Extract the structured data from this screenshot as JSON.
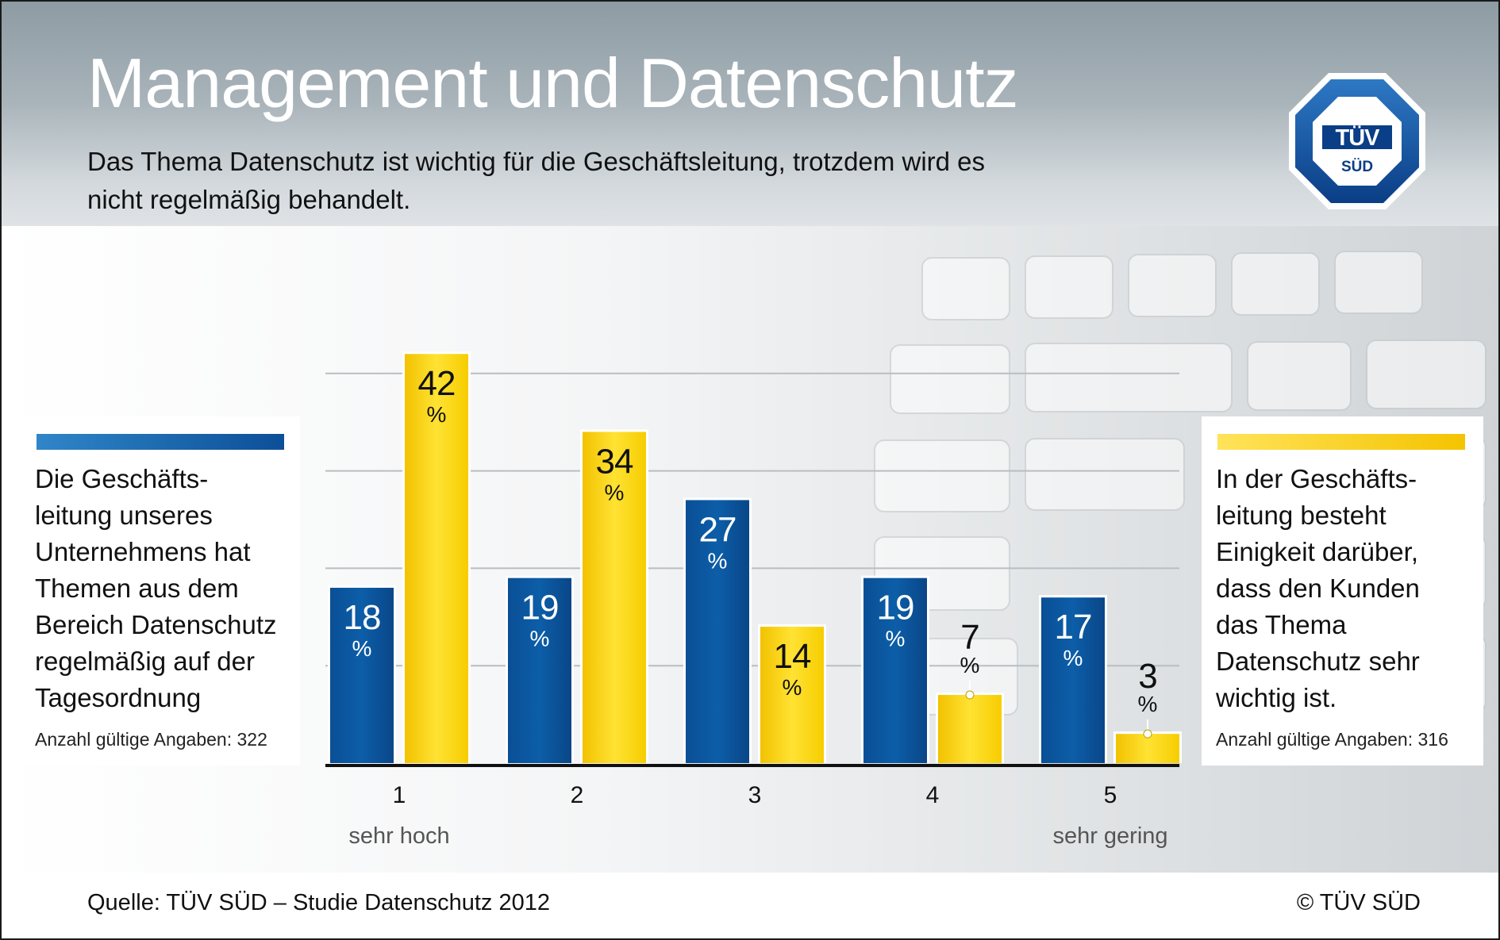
{
  "header": {
    "title": "Management und Datenschutz",
    "subtitle": "Das Thema Datenschutz ist wichtig für die Geschäftsleitung, trotzdem wird es nicht regelmäßig behandelt."
  },
  "logo": {
    "main": "TÜV",
    "sub": "SÜD",
    "icon": "tuev-sued-octagon-logo"
  },
  "legend": {
    "left": {
      "text": "Die Geschäfts-\nleitung  unseres\nUnternehmens hat\nThemen aus dem\nBereich Datenschutz\nregelmäßig auf der\nTagesordnung",
      "count": "Anzahl gültige Angaben: 322",
      "color": "#0c5ea8"
    },
    "right": {
      "text": "In der Geschäfts-\nleitung besteht\nEinigkeit darüber,\ndass den Kunden\ndas Thema\nDatenschutz sehr\nwichtig ist.",
      "count": "Anzahl gültige Angaben: 316",
      "color": "#f6cd00"
    }
  },
  "chart_data": {
    "type": "bar",
    "categories": [
      "1",
      "2",
      "3",
      "4",
      "5"
    ],
    "category_sublabels": [
      "sehr hoch",
      "",
      "",
      "",
      "sehr gering"
    ],
    "series": [
      {
        "values": [
          18,
          19,
          27,
          19,
          17
        ],
        "color": "#0c5ea8"
      },
      {
        "values": [
          42,
          34,
          14,
          7,
          3
        ],
        "color": "#f6cd00"
      }
    ],
    "unit": "%",
    "ylim": [
      0,
      45
    ],
    "gridlines": [
      10,
      20,
      30,
      40
    ],
    "grid": true
  },
  "footer": {
    "source": "Quelle: TÜV SÜD – Studie Datenschutz 2012",
    "copyright": "© TÜV SÜD"
  }
}
